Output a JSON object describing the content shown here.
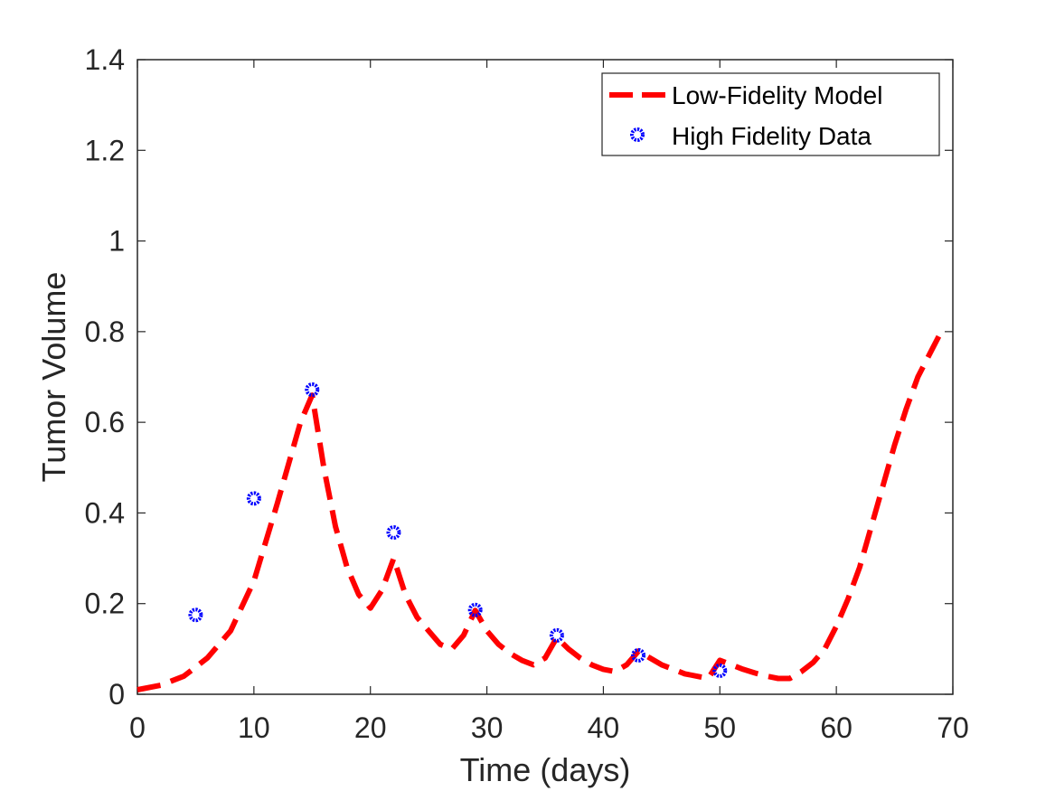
{
  "chart_data": {
    "type": "line",
    "title": "",
    "xlabel": "Time (days)",
    "ylabel": "Tumor Volume",
    "xlim": [
      0,
      70
    ],
    "ylim": [
      0,
      1.4
    ],
    "xticks": [
      0,
      10,
      20,
      30,
      40,
      50,
      60,
      70
    ],
    "yticks": [
      0,
      0.2,
      0.4,
      0.6,
      0.8,
      1,
      1.2,
      1.4
    ],
    "xtick_labels": [
      "0",
      "10",
      "20",
      "30",
      "40",
      "50",
      "60",
      "70"
    ],
    "ytick_labels": [
      "0",
      "0.2",
      "0.4",
      "0.6",
      "0.8",
      "1",
      "1.2",
      "1.4"
    ],
    "grid": false,
    "legend_position": "top-right",
    "series": [
      {
        "name": "Low-Fidelity Model",
        "style": "dashed-line",
        "color": "#ff0000",
        "x": [
          0,
          2,
          4,
          6,
          8,
          10,
          12,
          14,
          15,
          16,
          17,
          18,
          19,
          20,
          21,
          22,
          23,
          24,
          25,
          26,
          27,
          28,
          29,
          30,
          31,
          32,
          33,
          34,
          35,
          36,
          37,
          38,
          39,
          40,
          41,
          42,
          43,
          44,
          45,
          46,
          47,
          48,
          49,
          50,
          51,
          52,
          53,
          54,
          55,
          56,
          57,
          58,
          59,
          60,
          61,
          62,
          63,
          64,
          65,
          66,
          67,
          68,
          69
        ],
        "y": [
          0.01,
          0.02,
          0.04,
          0.08,
          0.14,
          0.25,
          0.42,
          0.6,
          0.66,
          0.5,
          0.37,
          0.28,
          0.22,
          0.19,
          0.23,
          0.3,
          0.22,
          0.17,
          0.14,
          0.11,
          0.1,
          0.13,
          0.185,
          0.14,
          0.11,
          0.09,
          0.075,
          0.065,
          0.08,
          0.125,
          0.1,
          0.08,
          0.065,
          0.055,
          0.05,
          0.065,
          0.095,
          0.08,
          0.065,
          0.055,
          0.045,
          0.04,
          0.035,
          0.075,
          0.065,
          0.055,
          0.047,
          0.04,
          0.035,
          0.035,
          0.05,
          0.07,
          0.1,
          0.15,
          0.21,
          0.28,
          0.37,
          0.46,
          0.55,
          0.63,
          0.7,
          0.75,
          0.8
        ]
      },
      {
        "name": "High Fidelity Data",
        "style": "markers",
        "color": "#0000ff",
        "x": [
          5,
          10,
          15,
          22,
          29,
          36,
          43,
          50
        ],
        "y": [
          0.175,
          0.432,
          0.672,
          0.357,
          0.186,
          0.13,
          0.086,
          0.052
        ]
      }
    ]
  }
}
